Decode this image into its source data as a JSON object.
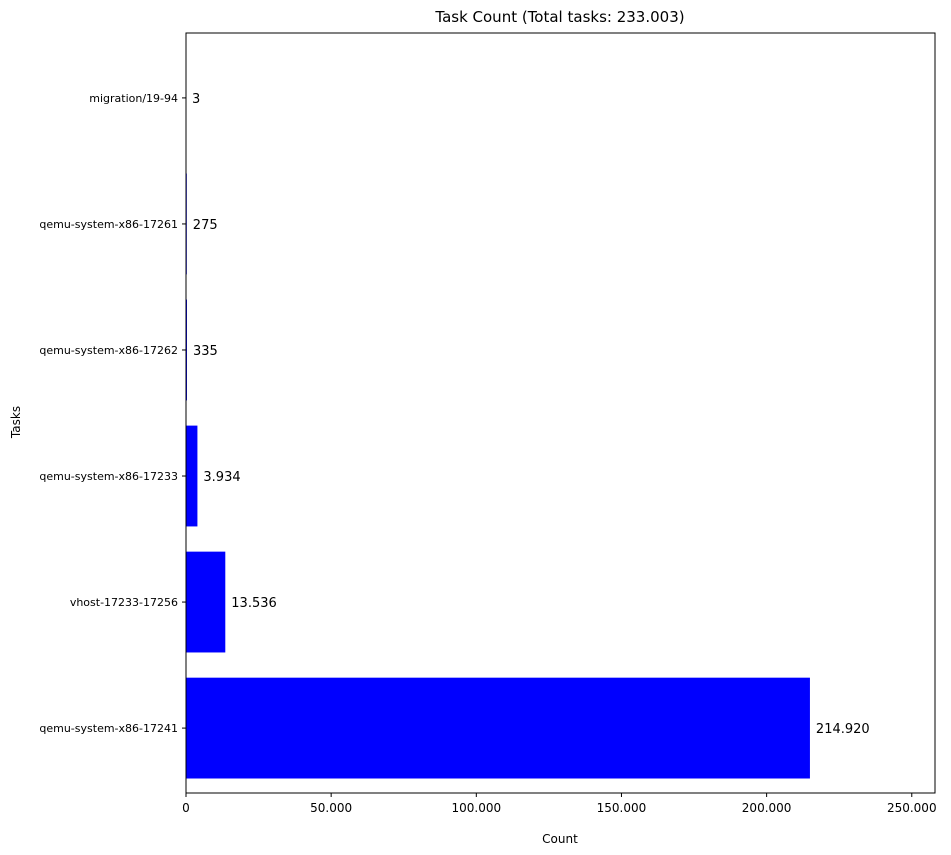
{
  "chart_data": {
    "type": "bar",
    "orientation": "horizontal",
    "title": "Task Count (Total tasks: 233.003)",
    "xlabel": "Count",
    "ylabel": "Tasks",
    "categories": [
      "qemu-system-x86-17241",
      "vhost-17233-17256",
      "qemu-system-x86-17233",
      "qemu-system-x86-17262",
      "qemu-system-x86-17261",
      "migration/19-94"
    ],
    "values": [
      214920,
      13536,
      3934,
      335,
      275,
      3
    ],
    "data_labels": [
      "214.920",
      "13.536",
      "3.934",
      "335",
      "275",
      "3"
    ],
    "xlim": [
      0,
      258000
    ],
    "x_ticks": [
      0,
      50000,
      100000,
      150000,
      200000,
      250000
    ],
    "x_tick_labels": [
      "0",
      "50.000",
      "100.000",
      "150.000",
      "200.000",
      "250.000"
    ],
    "bar_color": "#0000ff",
    "grid": false,
    "legend": "none"
  }
}
